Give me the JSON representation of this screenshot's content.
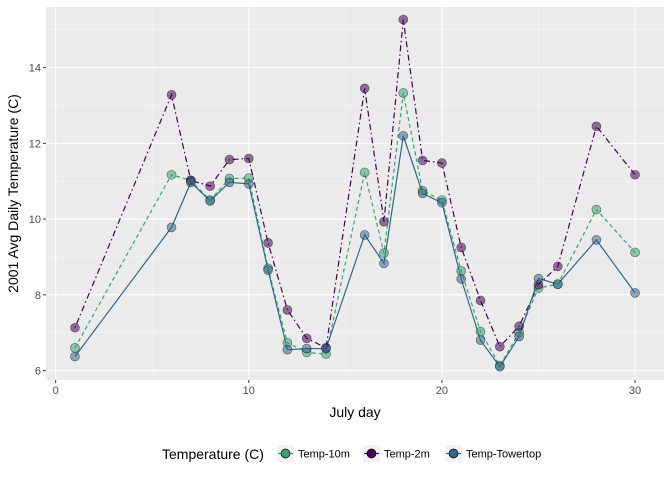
{
  "chart_data": {
    "type": "line",
    "title": "",
    "xlabel": "July day",
    "ylabel": "2001 Avg Daily Temperature (C)",
    "xlim": [
      -0.5,
      31.5
    ],
    "ylim": [
      5.75,
      15.6
    ],
    "x_ticks": [
      0,
      10,
      20,
      30
    ],
    "y_ticks": [
      6,
      8,
      10,
      12,
      14
    ],
    "x_tick_labels": [
      "0",
      "10",
      "20",
      "30"
    ],
    "y_tick_labels": [
      "6",
      "8",
      "10",
      "12",
      "14"
    ],
    "grid": true,
    "legend": {
      "title": "Temperature (C)",
      "position": "bottom",
      "entries": [
        "Temp-10m",
        "Temp-2m",
        "Temp-Towertop"
      ]
    },
    "series": [
      {
        "name": "Temp-10m",
        "color": "#3aa36b",
        "line_style": "dashed",
        "points": [
          [
            1,
            6.6
          ],
          [
            6,
            11.17
          ],
          [
            7,
            11.02
          ],
          [
            8,
            10.5
          ],
          [
            9,
            11.07
          ],
          [
            10,
            11.08
          ],
          [
            11,
            8.7
          ],
          [
            12,
            6.73
          ],
          [
            13,
            6.48
          ],
          [
            14,
            6.43
          ],
          [
            16,
            11.23
          ],
          [
            17,
            9.1
          ],
          [
            18,
            13.33
          ],
          [
            19,
            10.75
          ],
          [
            20,
            10.5
          ],
          [
            21,
            8.63
          ],
          [
            22,
            7.03
          ],
          [
            23,
            6.13
          ],
          [
            24,
            7.0
          ],
          [
            25,
            8.18
          ],
          [
            26,
            8.28
          ],
          [
            28,
            10.25
          ],
          [
            30,
            9.12
          ]
        ]
      },
      {
        "name": "Temp-2m",
        "color": "#440154",
        "line_style": "dotdash",
        "points": [
          [
            1,
            7.13
          ],
          [
            6,
            13.28
          ],
          [
            7,
            11.02
          ],
          [
            8,
            10.87
          ],
          [
            9,
            11.57
          ],
          [
            10,
            11.6
          ],
          [
            11,
            9.37
          ],
          [
            12,
            7.6
          ],
          [
            13,
            6.85
          ],
          [
            14,
            6.6
          ],
          [
            16,
            13.45
          ],
          [
            17,
            9.93
          ],
          [
            18,
            15.27
          ],
          [
            19,
            11.55
          ],
          [
            20,
            11.48
          ],
          [
            21,
            9.25
          ],
          [
            22,
            7.85
          ],
          [
            23,
            6.63
          ],
          [
            24,
            7.17
          ],
          [
            25,
            8.27
          ],
          [
            26,
            8.75
          ],
          [
            28,
            12.45
          ],
          [
            30,
            11.17
          ]
        ]
      },
      {
        "name": "Temp-Towertop",
        "color": "#31688e",
        "line_style": "solid",
        "points": [
          [
            1,
            6.37
          ],
          [
            6,
            9.78
          ],
          [
            7,
            10.97
          ],
          [
            8,
            10.48
          ],
          [
            9,
            10.97
          ],
          [
            10,
            10.93
          ],
          [
            11,
            8.65
          ],
          [
            12,
            6.55
          ],
          [
            13,
            6.58
          ],
          [
            14,
            6.58
          ],
          [
            16,
            9.58
          ],
          [
            17,
            8.83
          ],
          [
            18,
            12.2
          ],
          [
            19,
            10.68
          ],
          [
            20,
            10.43
          ],
          [
            21,
            8.42
          ],
          [
            22,
            6.8
          ],
          [
            23,
            6.1
          ],
          [
            24,
            6.9
          ],
          [
            25,
            8.43
          ],
          [
            26,
            8.28
          ],
          [
            28,
            9.45
          ],
          [
            30,
            8.05
          ]
        ]
      }
    ]
  }
}
